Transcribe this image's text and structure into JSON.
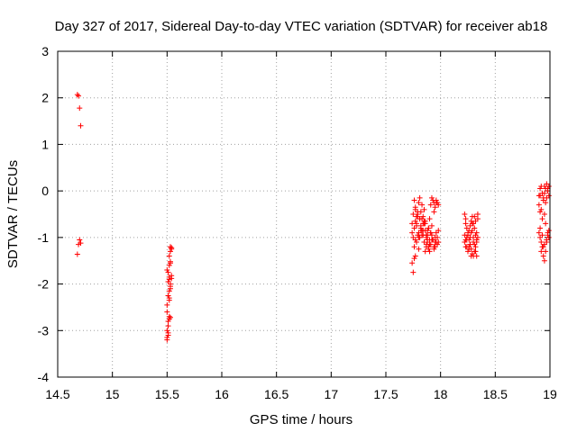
{
  "chart_data": {
    "type": "scatter",
    "title": "Day 327 of 2017, Sidereal Day-to-day VTEC variation (SDTVAR) for receiver ab18",
    "xlabel": "GPS time / hours",
    "ylabel": "SDTVAR / TECUs",
    "xlim": [
      14.5,
      19
    ],
    "ylim": [
      -4,
      3
    ],
    "xticks": [
      14.5,
      15,
      15.5,
      16,
      16.5,
      17,
      17.5,
      18,
      18.5,
      19
    ],
    "yticks": [
      -4,
      -3,
      -2,
      -1,
      0,
      1,
      2,
      3
    ],
    "xtick_labels": [
      "14.5",
      "15",
      "15.5",
      "16",
      "16.5",
      "17",
      "17.5",
      "18",
      "18.5",
      "19"
    ],
    "ytick_labels": [
      "-4",
      "-3",
      "-2",
      "-1",
      "0",
      "1",
      "2",
      "3"
    ],
    "grid": true,
    "marker": "+",
    "color": "#ff0000",
    "series": [
      {
        "name": "SDTVAR",
        "x": [
          14.68,
          14.69,
          14.7,
          14.71,
          14.68,
          14.69,
          14.7,
          14.71,
          15.5,
          15.51,
          15.51,
          15.52,
          15.52,
          15.53,
          15.53,
          15.54,
          15.5,
          15.51,
          15.52,
          15.52,
          15.53,
          15.53,
          15.54,
          15.5,
          15.51,
          15.52,
          15.52,
          15.53,
          15.54,
          15.53,
          15.5,
          15.51,
          15.52,
          15.5,
          15.51,
          15.52,
          15.51,
          15.53,
          15.54,
          15.5,
          15.52,
          15.53,
          17.74,
          17.75,
          17.76,
          17.77,
          17.78,
          17.79,
          17.8,
          17.81,
          17.82,
          17.83,
          17.84,
          17.85,
          17.86,
          17.87,
          17.88,
          17.89,
          17.9,
          17.91,
          17.92,
          17.93,
          17.94,
          17.95,
          17.96,
          17.97,
          17.98,
          17.74,
          17.75,
          17.76,
          17.77,
          17.78,
          17.79,
          17.8,
          17.81,
          17.82,
          17.83,
          17.84,
          17.85,
          17.86,
          17.87,
          17.88,
          17.89,
          17.9,
          17.91,
          17.92,
          17.93,
          17.94,
          17.95,
          17.96,
          17.97,
          17.98,
          17.74,
          17.75,
          17.76,
          17.77,
          17.78,
          17.79,
          17.8,
          17.81,
          17.82,
          17.83,
          17.84,
          17.85,
          17.86,
          17.87,
          17.88,
          17.89,
          17.9,
          17.91,
          17.92,
          17.93,
          17.94,
          17.95,
          17.96,
          17.97,
          17.98,
          17.76,
          17.77,
          17.78,
          17.8,
          17.82,
          17.84,
          17.86,
          17.88,
          17.9,
          17.92,
          17.94,
          17.96,
          17.77,
          17.79,
          17.81,
          17.83,
          17.85,
          17.87,
          17.89,
          17.91,
          17.93,
          17.95,
          18.22,
          18.23,
          18.24,
          18.25,
          18.26,
          18.27,
          18.28,
          18.29,
          18.3,
          18.31,
          18.32,
          18.33,
          18.34,
          18.22,
          18.23,
          18.24,
          18.25,
          18.26,
          18.27,
          18.28,
          18.29,
          18.3,
          18.31,
          18.32,
          18.33,
          18.34,
          18.22,
          18.23,
          18.24,
          18.25,
          18.26,
          18.27,
          18.28,
          18.29,
          18.3,
          18.31,
          18.32,
          18.33,
          18.34,
          18.23,
          18.25,
          18.27,
          18.29,
          18.31,
          18.33,
          18.24,
          18.26,
          18.28,
          18.3,
          18.32,
          18.9,
          18.91,
          18.92,
          18.93,
          18.94,
          18.95,
          18.96,
          18.97,
          18.98,
          18.99,
          18.9,
          18.91,
          18.92,
          18.93,
          18.94,
          18.95,
          18.96,
          18.97,
          18.98,
          18.99,
          18.9,
          18.91,
          18.92,
          18.93,
          18.94,
          18.95,
          18.96,
          18.97,
          18.98,
          18.99,
          18.91,
          18.93,
          18.95,
          18.97,
          18.99,
          18.92,
          18.94,
          18.96,
          18.98,
          18.91,
          18.95
        ],
        "y": [
          2.07,
          2.04,
          1.78,
          1.4,
          -1.36,
          -1.15,
          -1.05,
          -1.12,
          -3.15,
          -3.05,
          -3.1,
          -2.75,
          -2.7,
          -2.72,
          -1.2,
          -1.25,
          -1.7,
          -1.75,
          -1.85,
          -1.9,
          -2.0,
          -2.1,
          -1.82,
          -2.45,
          -2.25,
          -2.3,
          -2.15,
          -1.52,
          -1.22,
          -1.55,
          -2.6,
          -2.8,
          -1.6,
          -3.0,
          -2.9,
          -2.35,
          -1.95,
          -2.05,
          -1.88,
          -3.2,
          -1.4,
          -1.3,
          -0.9,
          -0.5,
          -0.2,
          -0.35,
          -0.7,
          -0.55,
          -0.9,
          -0.6,
          -0.75,
          -0.95,
          -0.85,
          -0.4,
          -0.65,
          -0.95,
          -1.05,
          -0.8,
          -0.6,
          -0.3,
          -0.15,
          -0.2,
          -0.25,
          -0.35,
          -0.2,
          -0.25,
          -0.3,
          -0.7,
          -1.0,
          -1.2,
          -1.4,
          -1.1,
          -0.95,
          -1.25,
          -1.0,
          -0.85,
          -0.6,
          -0.7,
          -1.1,
          -1.3,
          -1.2,
          -0.95,
          -0.8,
          -1.05,
          -1.15,
          -0.95,
          -1.05,
          -1.2,
          -1.0,
          -1.1,
          -1.15,
          -0.85,
          -1.55,
          -1.75,
          -1.45,
          -1.05,
          -0.75,
          -0.45,
          -0.25,
          -0.15,
          -0.45,
          -0.3,
          -0.55,
          -0.7,
          -0.85,
          -1.0,
          -1.1,
          -1.25,
          -1.15,
          -0.9,
          -0.75,
          -1.05,
          -1.25,
          -1.1,
          -0.9,
          -1.0,
          -1.1,
          -0.8,
          -0.65,
          -0.55,
          -1.0,
          -0.8,
          -0.95,
          -0.7,
          -0.85,
          -1.3,
          -1.05,
          -0.45,
          -0.25,
          -0.4,
          -0.5,
          -0.6,
          -0.85,
          -0.65,
          -1.15,
          -1.2,
          -0.9,
          -1.05,
          -1.2,
          -0.5,
          -0.6,
          -0.8,
          -0.95,
          -1.05,
          -1.15,
          -1.25,
          -1.35,
          -1.4,
          -1.3,
          -1.2,
          -1.1,
          -1.0,
          -1.1,
          -1.2,
          -1.05,
          -0.95,
          -0.85,
          -0.75,
          -0.65,
          -0.55,
          -0.7,
          -0.8,
          -0.95,
          -1.05,
          -0.6,
          -0.95,
          -1.05,
          -1.2,
          -1.3,
          -1.25,
          -1.15,
          -0.9,
          -0.85,
          -1.0,
          -1.15,
          -1.3,
          -1.4,
          -0.5,
          -0.7,
          -0.9,
          -1.0,
          -0.7,
          -0.55,
          -0.9,
          -1.0,
          -1.2,
          -1.4,
          -1.1,
          -0.65,
          -0.1,
          0.05,
          0.1,
          -0.05,
          -0.15,
          0.1,
          0.05,
          0.15,
          0.0,
          0.1,
          -0.3,
          -0.1,
          -0.4,
          -0.6,
          -0.2,
          -0.05,
          -0.25,
          -0.15,
          0.05,
          -0.1,
          -0.9,
          -1.0,
          -1.1,
          -1.2,
          -1.4,
          -1.5,
          -1.3,
          -1.1,
          -0.9,
          -1.0,
          -0.8,
          -0.95,
          -1.15,
          -1.05,
          -0.85,
          -1.3,
          -1.2,
          -0.7,
          -0.95,
          -0.45,
          -0.5
        ]
      }
    ]
  }
}
